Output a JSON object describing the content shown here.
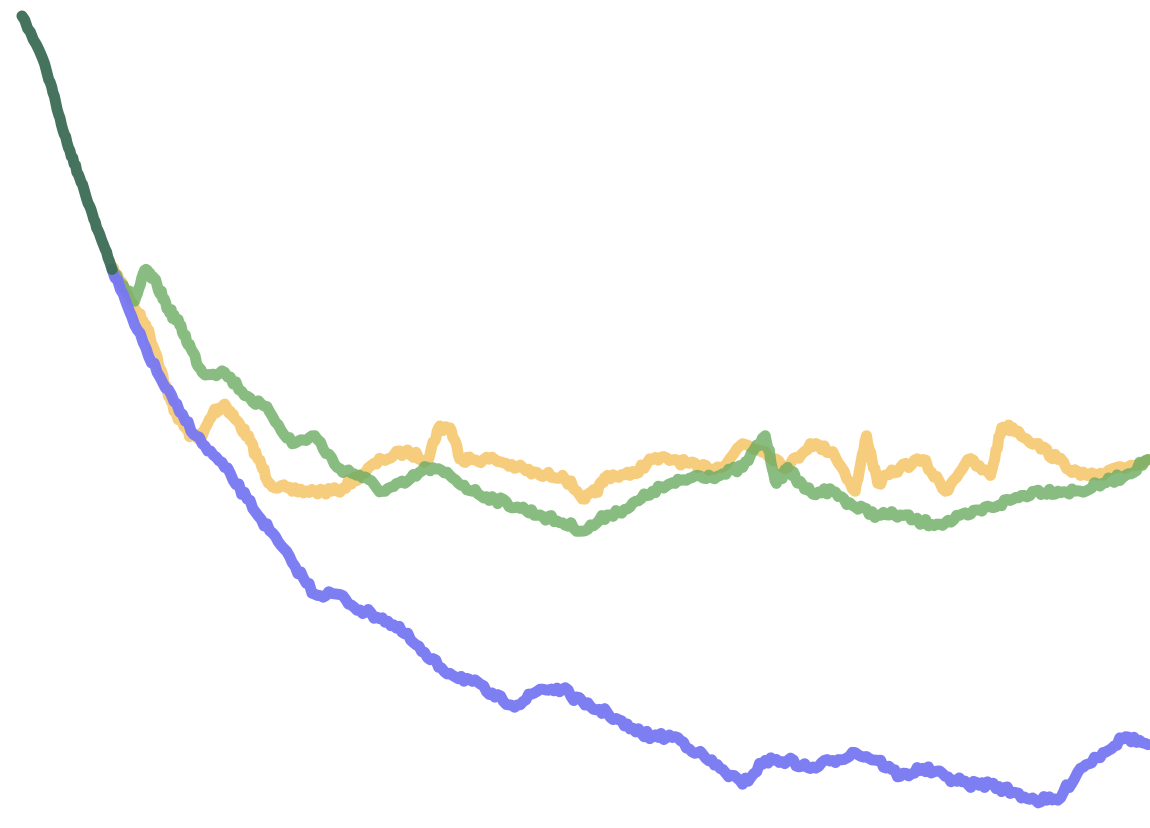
{
  "chart_data": {
    "type": "line",
    "title": "",
    "xlabel": "",
    "ylabel": "",
    "xlim": [
      0,
      1
    ],
    "ylim": [
      0,
      1
    ],
    "grid": false,
    "legend": "none",
    "axes_visible": false,
    "shared_start": {
      "color": "#3b6b55",
      "opacity": 0.95,
      "x": [
        0.0,
        0.02,
        0.03,
        0.04,
        0.05,
        0.06,
        0.07,
        0.08
      ],
      "y": [
        1.0,
        0.94,
        0.89,
        0.84,
        0.8,
        0.76,
        0.72,
        0.68
      ]
    },
    "series": [
      {
        "color": "#7777f2",
        "opacity": 0.95,
        "x": [
          0.08,
          0.1,
          0.12,
          0.14,
          0.16,
          0.18,
          0.2,
          0.22,
          0.24,
          0.26,
          0.28,
          0.3,
          0.32,
          0.34,
          0.36,
          0.38,
          0.4,
          0.42,
          0.44,
          0.46,
          0.48,
          0.5,
          0.52,
          0.54,
          0.56,
          0.58,
          0.6,
          0.62,
          0.64,
          0.66,
          0.68,
          0.7,
          0.72,
          0.74,
          0.76,
          0.78,
          0.8,
          0.82,
          0.84,
          0.86,
          0.88,
          0.9,
          0.92,
          0.94,
          0.96,
          0.98,
          1.0
        ],
        "y": [
          0.68,
          0.61,
          0.55,
          0.5,
          0.46,
          0.43,
          0.39,
          0.35,
          0.31,
          0.27,
          0.27,
          0.25,
          0.24,
          0.22,
          0.19,
          0.17,
          0.16,
          0.14,
          0.13,
          0.15,
          0.15,
          0.13,
          0.12,
          0.1,
          0.09,
          0.09,
          0.07,
          0.05,
          0.03,
          0.06,
          0.06,
          0.05,
          0.06,
          0.07,
          0.06,
          0.04,
          0.05,
          0.04,
          0.03,
          0.03,
          0.02,
          0.01,
          0.01,
          0.05,
          0.07,
          0.09,
          0.08
        ]
      },
      {
        "color": "#f5c86e",
        "opacity": 0.9,
        "x": [
          0.08,
          0.09,
          0.1,
          0.11,
          0.12,
          0.13,
          0.14,
          0.15,
          0.16,
          0.17,
          0.18,
          0.19,
          0.2,
          0.21,
          0.22,
          0.24,
          0.26,
          0.28,
          0.3,
          0.32,
          0.34,
          0.36,
          0.37,
          0.38,
          0.39,
          0.4,
          0.42,
          0.44,
          0.46,
          0.48,
          0.5,
          0.51,
          0.52,
          0.54,
          0.56,
          0.58,
          0.6,
          0.62,
          0.64,
          0.66,
          0.68,
          0.7,
          0.72,
          0.74,
          0.75,
          0.76,
          0.78,
          0.8,
          0.82,
          0.84,
          0.86,
          0.87,
          0.88,
          0.9,
          0.92,
          0.94,
          0.96,
          1.0
        ],
        "y": [
          0.68,
          0.66,
          0.63,
          0.61,
          0.57,
          0.52,
          0.49,
          0.47,
          0.47,
          0.5,
          0.51,
          0.49,
          0.47,
          0.44,
          0.41,
          0.4,
          0.4,
          0.4,
          0.42,
          0.44,
          0.45,
          0.44,
          0.48,
          0.48,
          0.44,
          0.44,
          0.44,
          0.43,
          0.42,
          0.42,
          0.39,
          0.4,
          0.42,
          0.42,
          0.44,
          0.44,
          0.43,
          0.43,
          0.46,
          0.45,
          0.43,
          0.46,
          0.45,
          0.4,
          0.47,
          0.41,
          0.43,
          0.44,
          0.4,
          0.44,
          0.42,
          0.48,
          0.48,
          0.46,
          0.44,
          0.42,
          0.42,
          0.44
        ]
      },
      {
        "color": "#6aab62",
        "opacity": 0.8,
        "x": [
          0.08,
          0.09,
          0.1,
          0.11,
          0.12,
          0.13,
          0.14,
          0.15,
          0.16,
          0.18,
          0.2,
          0.22,
          0.24,
          0.26,
          0.28,
          0.3,
          0.32,
          0.34,
          0.36,
          0.38,
          0.4,
          0.42,
          0.44,
          0.46,
          0.48,
          0.5,
          0.52,
          0.54,
          0.56,
          0.58,
          0.6,
          0.62,
          0.64,
          0.66,
          0.67,
          0.68,
          0.69,
          0.7,
          0.72,
          0.74,
          0.76,
          0.78,
          0.8,
          0.82,
          0.84,
          0.86,
          0.88,
          0.9,
          0.92,
          0.94,
          0.96,
          0.98,
          1.0
        ],
        "y": [
          0.68,
          0.66,
          0.64,
          0.68,
          0.66,
          0.63,
          0.61,
          0.58,
          0.55,
          0.55,
          0.52,
          0.5,
          0.46,
          0.47,
          0.43,
          0.42,
          0.4,
          0.41,
          0.43,
          0.42,
          0.4,
          0.39,
          0.38,
          0.37,
          0.36,
          0.35,
          0.37,
          0.38,
          0.4,
          0.41,
          0.42,
          0.42,
          0.43,
          0.47,
          0.41,
          0.43,
          0.41,
          0.4,
          0.4,
          0.38,
          0.37,
          0.37,
          0.36,
          0.36,
          0.37,
          0.38,
          0.39,
          0.4,
          0.4,
          0.4,
          0.41,
          0.42,
          0.44
        ]
      }
    ]
  }
}
